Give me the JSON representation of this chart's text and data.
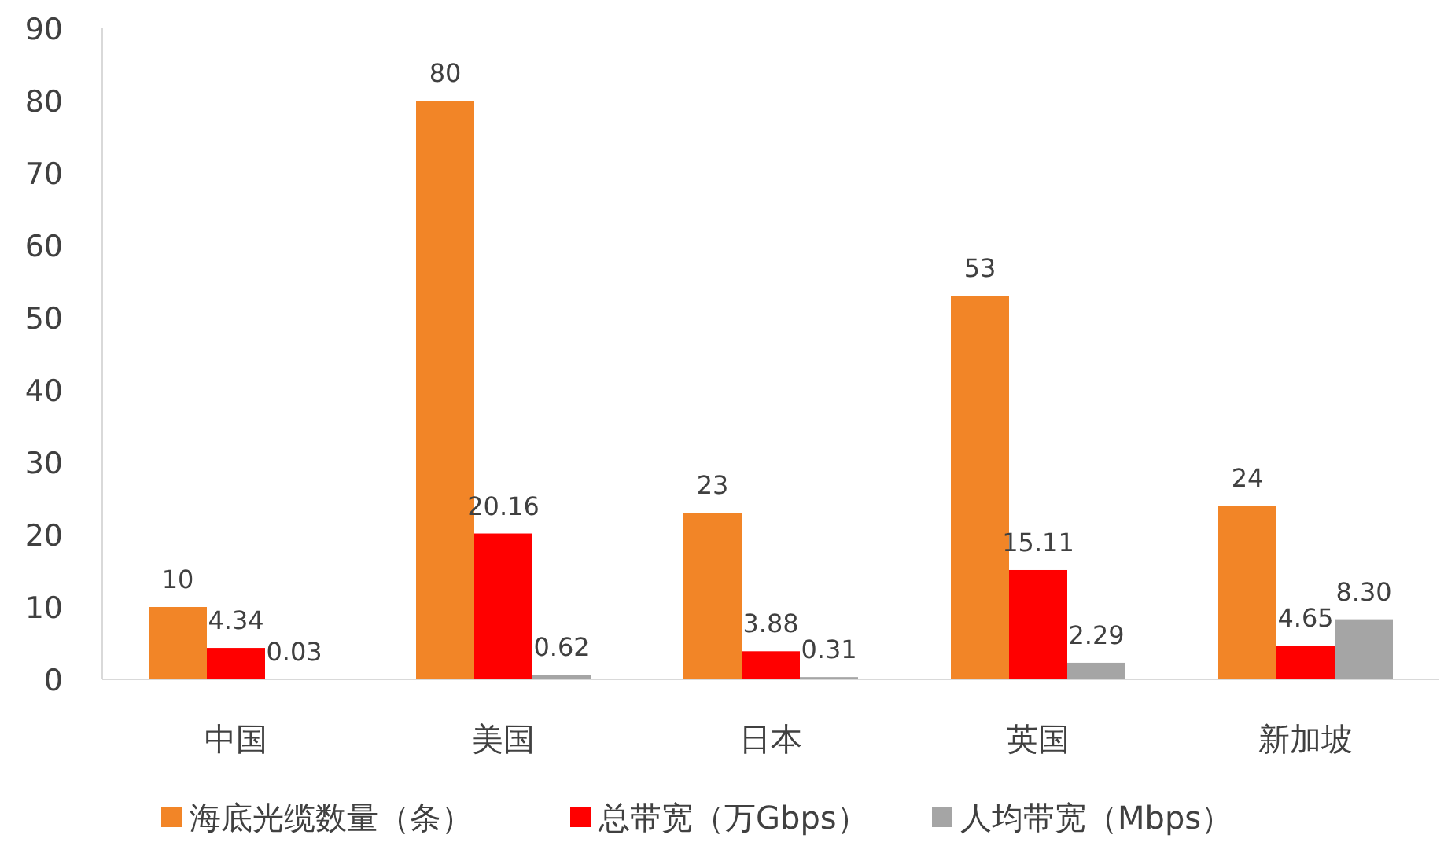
{
  "chart_data": {
    "type": "bar",
    "categories": [
      "中国",
      "美国",
      "日本",
      "英国",
      "新加坡"
    ],
    "series": [
      {
        "name": "海底光缆数量（条）",
        "color": "#f28527",
        "values": [
          10,
          80,
          23,
          53,
          24
        ],
        "value_labels": [
          "10",
          "80",
          "23",
          "53",
          "24"
        ]
      },
      {
        "name": "总带宽（万Gbps）",
        "color": "#ff0000",
        "values": [
          4.34,
          20.16,
          3.88,
          15.11,
          4.65
        ],
        "value_labels": [
          "4.34",
          "20.16",
          "3.88",
          "15.11",
          "4.65"
        ]
      },
      {
        "name": "人均带宽（Mbps）",
        "color": "#a5a5a5",
        "values": [
          0.03,
          0.62,
          0.31,
          2.29,
          8.3
        ],
        "value_labels": [
          "0.03",
          "0.62",
          "0.31",
          "2.29",
          "8.30"
        ]
      }
    ],
    "ylim": [
      0,
      90
    ],
    "yticks": [
      0,
      10,
      20,
      30,
      40,
      50,
      60,
      70,
      80,
      90
    ],
    "legend": "bottom"
  }
}
